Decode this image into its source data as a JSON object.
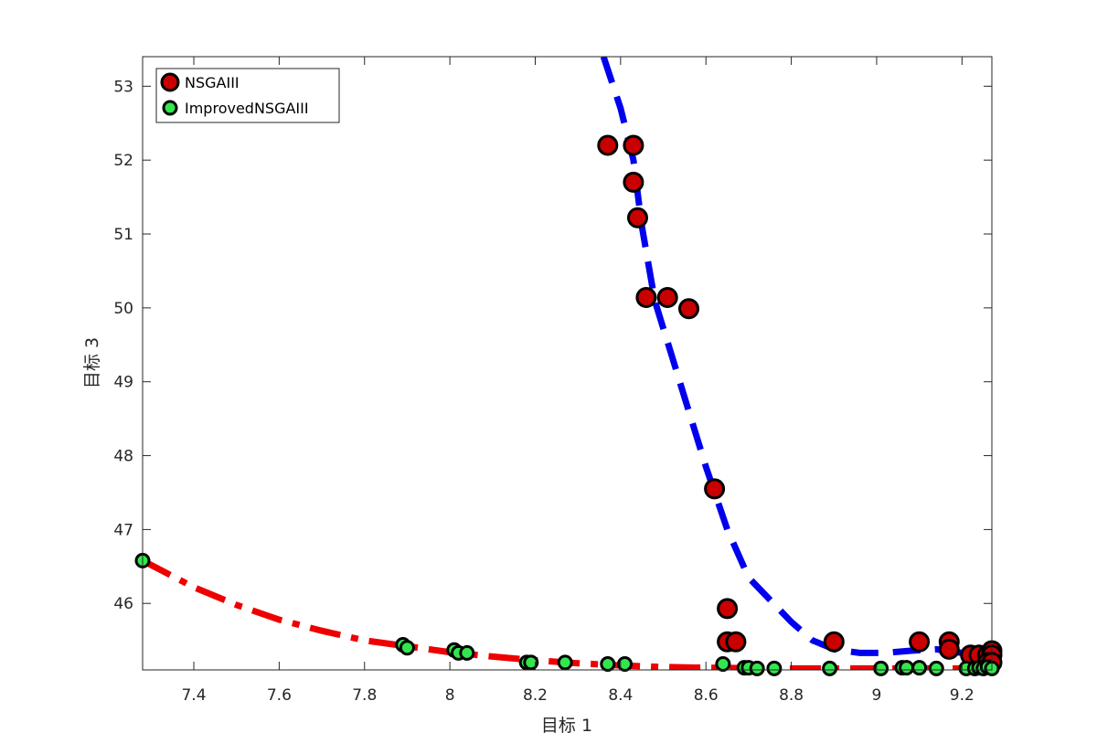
{
  "colors": {
    "nsga_fill": "#c80000",
    "improved_fill": "#33e64d",
    "nsga_curve": "#0000ee",
    "improved_curve": "#ee0000",
    "marker_edge": "#000000"
  },
  "chart_data": {
    "type": "scatter",
    "title": "",
    "xlabel": "目标 1",
    "ylabel": "目标 3",
    "xlim": [
      7.28,
      9.27
    ],
    "ylim": [
      45.1,
      53.4
    ],
    "xticks": [
      7.4,
      7.6,
      7.8,
      8,
      8.2,
      8.4,
      8.6,
      8.8,
      9,
      9.2
    ],
    "xtick_labels": [
      "7.4",
      "7.6",
      "7.8",
      "8",
      "8.2",
      "8.4",
      "8.6",
      "8.8",
      "9",
      "9.2"
    ],
    "yticks": [
      46,
      47,
      48,
      49,
      50,
      51,
      52,
      53
    ],
    "ytick_labels": [
      "46",
      "47",
      "48",
      "49",
      "50",
      "51",
      "52",
      "53"
    ],
    "grid": false,
    "legend_position": "top-left",
    "series": [
      {
        "name": "NSGAIII",
        "marker": "circle",
        "points": [
          [
            8.37,
            52.2
          ],
          [
            8.43,
            52.2
          ],
          [
            8.43,
            51.7
          ],
          [
            8.44,
            51.22
          ],
          [
            8.46,
            50.14
          ],
          [
            8.51,
            50.14
          ],
          [
            8.56,
            49.99
          ],
          [
            8.62,
            47.55
          ],
          [
            8.65,
            45.93
          ],
          [
            8.65,
            45.48
          ],
          [
            8.67,
            45.48
          ],
          [
            8.9,
            45.48
          ],
          [
            9.1,
            45.48
          ],
          [
            9.17,
            45.48
          ],
          [
            9.17,
            45.38
          ],
          [
            9.22,
            45.3
          ],
          [
            9.24,
            45.3
          ],
          [
            9.26,
            45.3
          ],
          [
            9.27,
            45.36
          ],
          [
            9.27,
            45.3
          ],
          [
            9.26,
            45.2
          ],
          [
            9.27,
            45.2
          ]
        ]
      },
      {
        "name": "ImprovedNSGAIII",
        "marker": "circle",
        "points": [
          [
            7.28,
            46.58
          ],
          [
            7.89,
            45.44
          ],
          [
            7.9,
            45.4
          ],
          [
            8.01,
            45.37
          ],
          [
            8.02,
            45.33
          ],
          [
            8.04,
            45.33
          ],
          [
            8.18,
            45.2
          ],
          [
            8.19,
            45.2
          ],
          [
            8.27,
            45.2
          ],
          [
            8.37,
            45.18
          ],
          [
            8.41,
            45.18
          ],
          [
            8.64,
            45.18
          ],
          [
            8.69,
            45.13
          ],
          [
            8.7,
            45.13
          ],
          [
            8.72,
            45.12
          ],
          [
            8.76,
            45.12
          ],
          [
            8.89,
            45.12
          ],
          [
            9.01,
            45.12
          ],
          [
            9.06,
            45.13
          ],
          [
            9.07,
            45.13
          ],
          [
            9.1,
            45.13
          ],
          [
            9.14,
            45.12
          ],
          [
            9.21,
            45.12
          ],
          [
            9.23,
            45.12
          ],
          [
            9.24,
            45.13
          ],
          [
            9.25,
            45.12
          ],
          [
            9.26,
            45.14
          ],
          [
            9.27,
            45.12
          ]
        ]
      }
    ],
    "fit_curves": [
      {
        "series": "NSGAIII",
        "style": "dashed",
        "points": [
          [
            8.36,
            53.4
          ],
          [
            8.4,
            52.7
          ],
          [
            8.43,
            52.0
          ],
          [
            8.45,
            51.1
          ],
          [
            8.48,
            50.1
          ],
          [
            8.52,
            49.35
          ],
          [
            8.56,
            48.6
          ],
          [
            8.6,
            47.85
          ],
          [
            8.65,
            47.0
          ],
          [
            8.7,
            46.35
          ],
          [
            8.75,
            46.05
          ],
          [
            8.8,
            45.75
          ],
          [
            8.85,
            45.5
          ],
          [
            8.9,
            45.38
          ],
          [
            8.96,
            45.33
          ],
          [
            9.02,
            45.33
          ],
          [
            9.08,
            45.36
          ],
          [
            9.14,
            45.38
          ],
          [
            9.2,
            45.33
          ],
          [
            9.24,
            45.25
          ],
          [
            9.27,
            45.22
          ]
        ]
      },
      {
        "series": "ImprovedNSGAIII",
        "style": "dash-dot",
        "points": [
          [
            7.28,
            46.58
          ],
          [
            7.4,
            46.22
          ],
          [
            7.5,
            45.98
          ],
          [
            7.6,
            45.78
          ],
          [
            7.7,
            45.63
          ],
          [
            7.8,
            45.5
          ],
          [
            7.9,
            45.42
          ],
          [
            8.0,
            45.34
          ],
          [
            8.1,
            45.28
          ],
          [
            8.2,
            45.23
          ],
          [
            8.3,
            45.19
          ],
          [
            8.4,
            45.16
          ],
          [
            8.5,
            45.14
          ],
          [
            8.6,
            45.13
          ],
          [
            8.7,
            45.125
          ],
          [
            8.8,
            45.12
          ],
          [
            8.9,
            45.12
          ],
          [
            9.0,
            45.12
          ],
          [
            9.1,
            45.12
          ],
          [
            9.2,
            45.12
          ],
          [
            9.27,
            45.12
          ]
        ]
      }
    ]
  }
}
